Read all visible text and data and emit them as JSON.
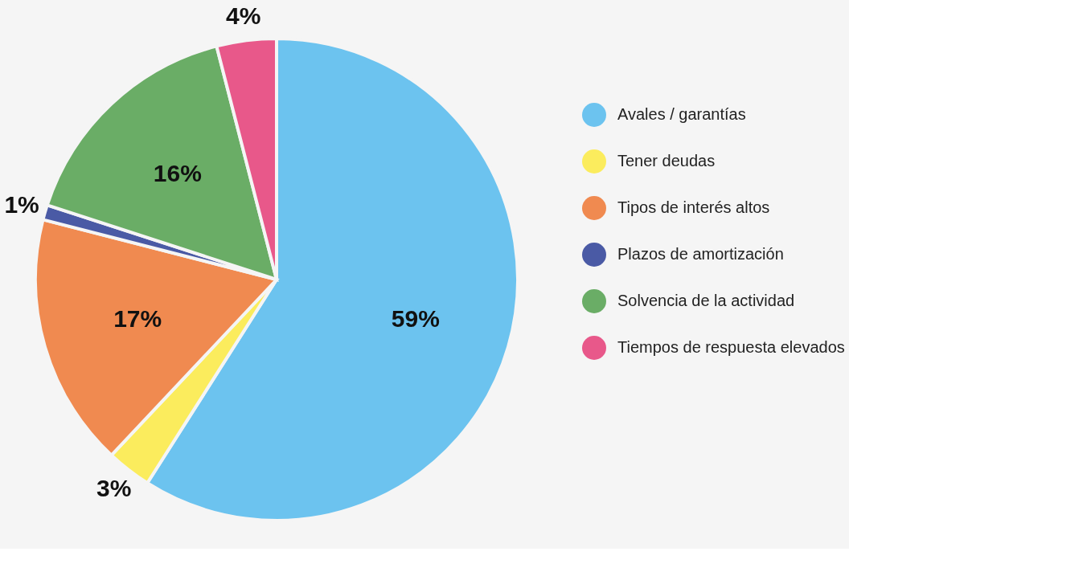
{
  "chart_data": {
    "type": "pie",
    "categories": [
      "Avales / garantías",
      "Tener deudas",
      "Tipos de interés altos",
      "Plazos de amortización",
      "Solvencia de la actividad",
      "Tiempos de respuesta elevados"
    ],
    "values": [
      59,
      3,
      17,
      1,
      16,
      4
    ],
    "colors": [
      "#6cc3ef",
      "#fbec5d",
      "#f08a50",
      "#4a5aa5",
      "#6aad66",
      "#e8588a"
    ],
    "value_labels": [
      "59%",
      "3%",
      "17%",
      "1%",
      "16%",
      "4%"
    ],
    "legend": "right"
  }
}
